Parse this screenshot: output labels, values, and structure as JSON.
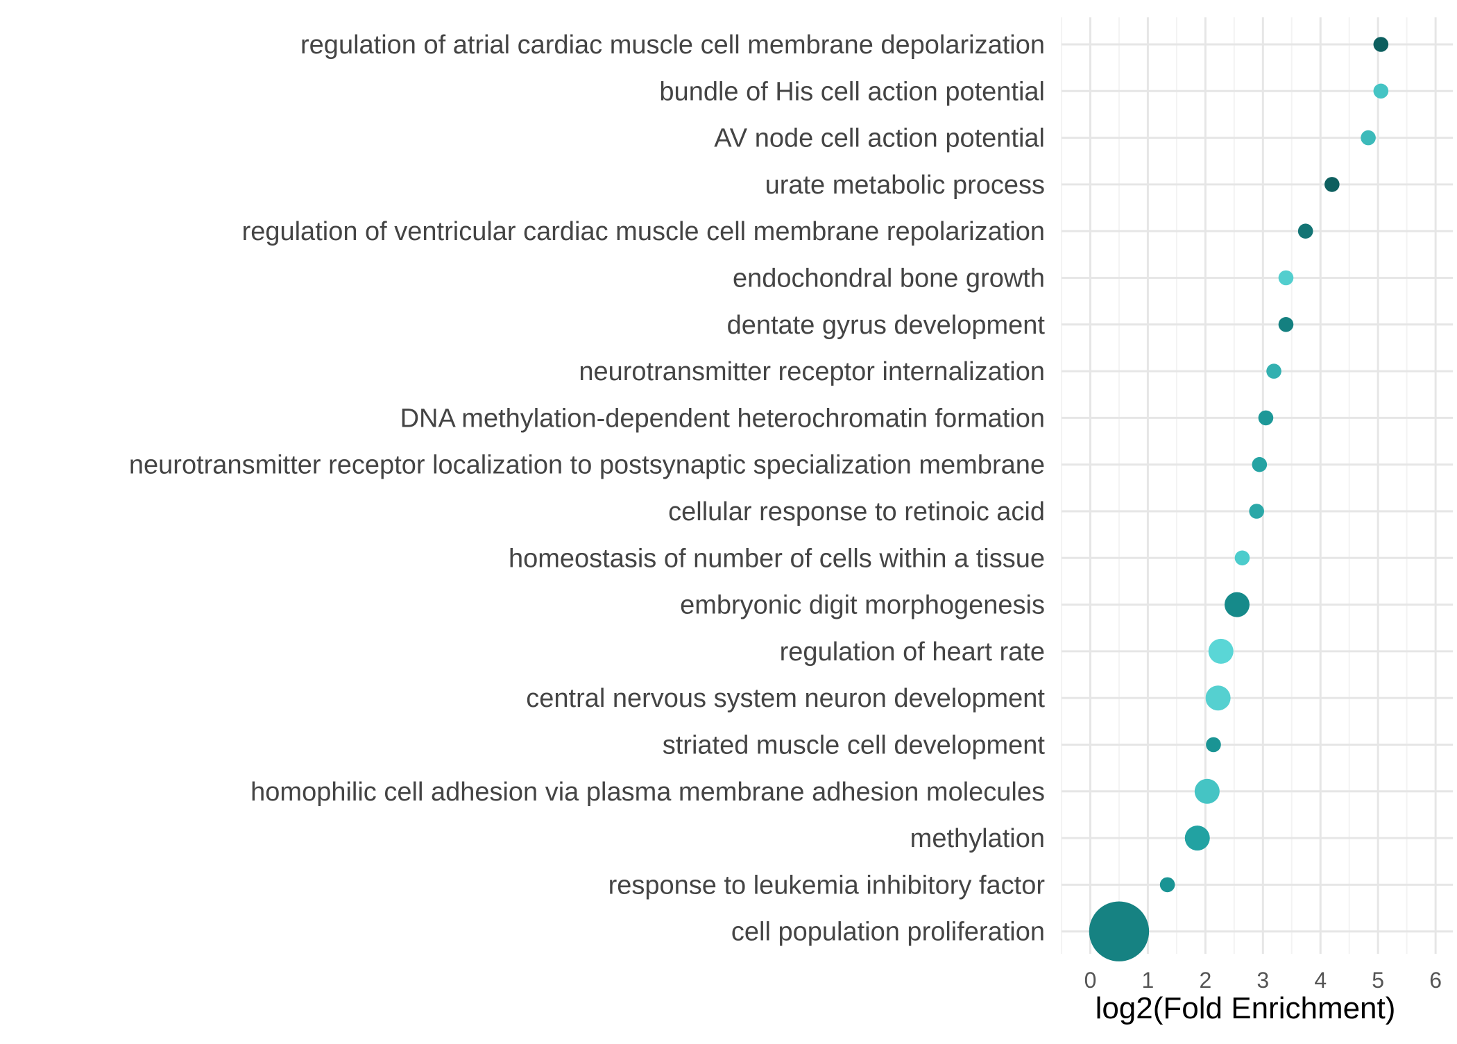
{
  "chart_data": {
    "type": "scatter",
    "xlabel": "log2(Fold Enrichment)",
    "xlim": [
      -0.5,
      6.3
    ],
    "xticks": [
      "0",
      "1",
      "2",
      "3",
      "4",
      "5",
      "6"
    ],
    "grid": true,
    "legend": "none",
    "categories": [
      "regulation of atrial cardiac muscle cell membrane depolarization",
      "bundle of His cell action potential",
      "AV node cell action potential",
      "urate metabolic process",
      "regulation of ventricular cardiac muscle cell membrane repolarization",
      "endochondral bone growth",
      "dentate gyrus development",
      "neurotransmitter receptor internalization",
      "DNA methylation-dependent heterochromatin formation",
      "neurotransmitter receptor localization to postsynaptic specialization membrane",
      "cellular response to retinoic acid",
      "homeostasis of number of cells within a tissue",
      "embryonic digit morphogenesis",
      "regulation of heart rate",
      "central nervous system neuron development",
      "striated muscle cell development",
      "homophilic cell adhesion via plasma membrane adhesion molecules",
      "methylation",
      "response to leukemia inhibitory factor",
      "cell population proliferation"
    ],
    "values": [
      5.05,
      5.05,
      4.83,
      4.2,
      3.74,
      3.4,
      3.4,
      3.19,
      3.05,
      2.94,
      2.89,
      2.64,
      2.55,
      2.27,
      2.22,
      2.14,
      2.03,
      1.86,
      1.34,
      0.5
    ],
    "point_sizes": [
      3,
      3,
      3,
      3,
      3,
      3,
      3,
      3,
      3,
      3,
      3,
      3,
      5,
      5,
      5,
      3,
      5,
      5,
      3,
      12
    ],
    "point_colors": [
      "#0d5f5f",
      "#45c4c4",
      "#3cbaba",
      "#0d5f5f",
      "#137474",
      "#52cece",
      "#148080",
      "#33b0b0",
      "#1d9898",
      "#25a3a3",
      "#2ba8a8",
      "#4ccccc",
      "#168a8a",
      "#5ad6d6",
      "#55d0d0",
      "#1a9494",
      "#45c4c4",
      "#22a2a2",
      "#1a9494",
      "#168282"
    ]
  }
}
